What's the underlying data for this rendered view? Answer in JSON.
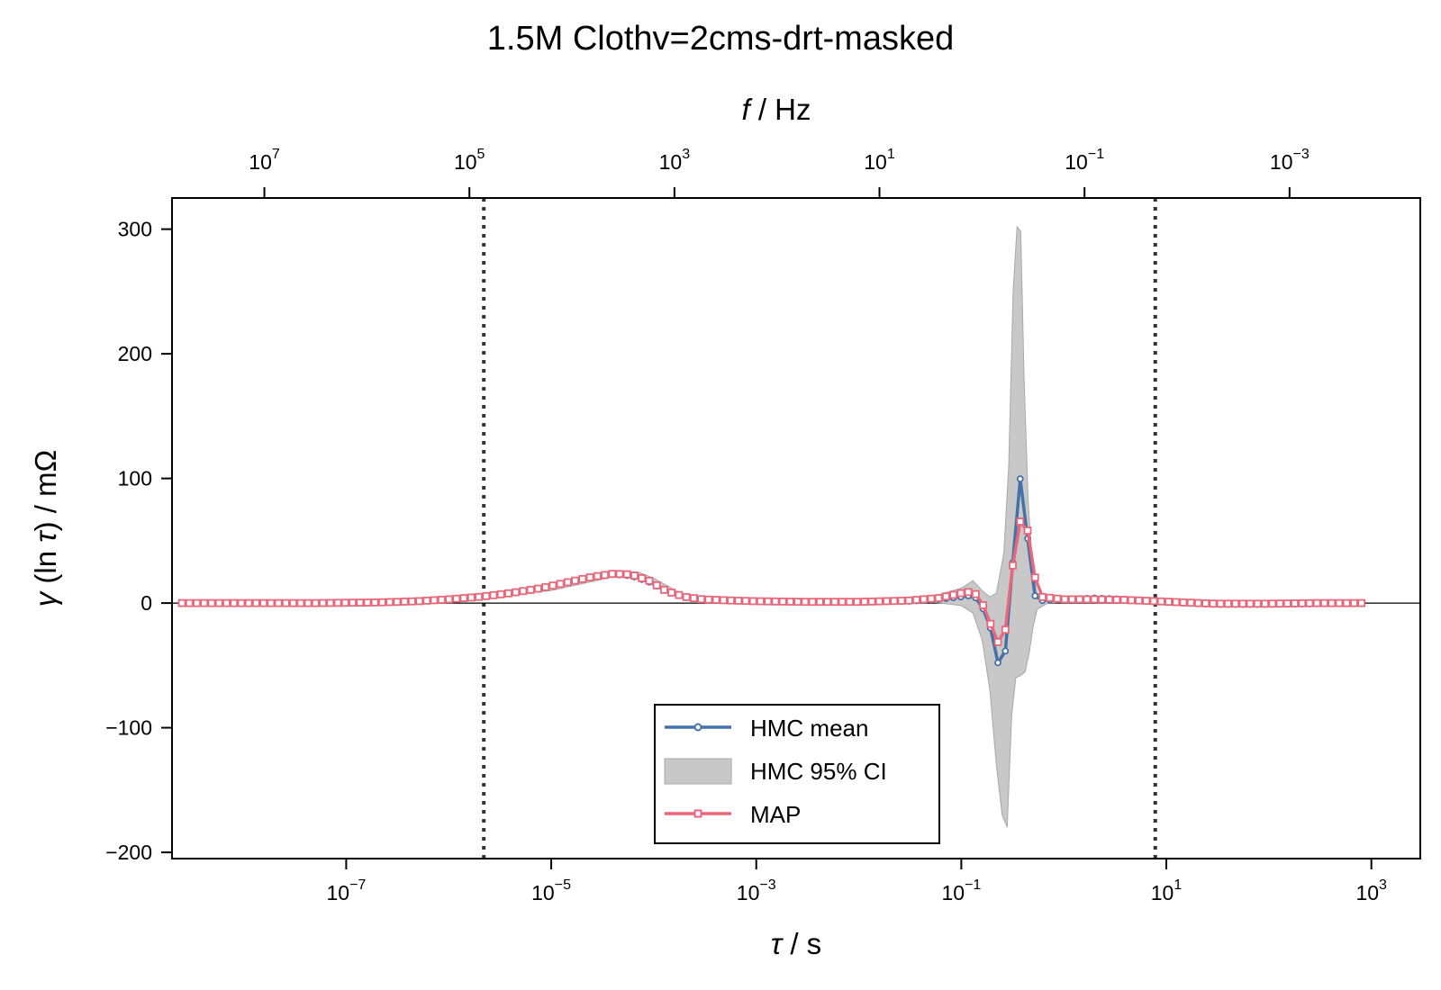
{
  "chart_data": {
    "type": "line",
    "title": "1.5M Clothv=2cms-drt-masked",
    "xlabel": "τ / s",
    "top_xlabel": "f / Hz",
    "ylabel": "γ (ln τ) / mΩ",
    "x_scale": "log",
    "top_x_scale": "log",
    "xlim": [
      2e-09,
      3000
    ],
    "ylim": [
      -205,
      325
    ],
    "x_ticks": [
      {
        "base": "10",
        "exp": "−7",
        "value": 1e-07
      },
      {
        "base": "10",
        "exp": "−5",
        "value": 1e-05
      },
      {
        "base": "10",
        "exp": "−3",
        "value": 0.001
      },
      {
        "base": "10",
        "exp": "−1",
        "value": 0.1
      },
      {
        "base": "10",
        "exp": "1",
        "value": 10
      },
      {
        "base": "10",
        "exp": "3",
        "value": 1000
      }
    ],
    "top_x_ticks": [
      {
        "base": "10",
        "exp": "7",
        "value": 10000000.0
      },
      {
        "base": "10",
        "exp": "5",
        "value": 100000.0
      },
      {
        "base": "10",
        "exp": "3",
        "value": 1000.0
      },
      {
        "base": "10",
        "exp": "1",
        "value": 10
      },
      {
        "base": "10",
        "exp": "−1",
        "value": 0.1
      },
      {
        "base": "10",
        "exp": "−3",
        "value": 0.001
      }
    ],
    "y_ticks": [
      {
        "label": "300",
        "value": 300
      },
      {
        "label": "200",
        "value": 200
      },
      {
        "label": "100",
        "value": 100
      },
      {
        "label": "0",
        "value": 0
      },
      {
        "label": "−100",
        "value": -100
      },
      {
        "label": "−200",
        "value": -200
      }
    ],
    "zero_line": 0,
    "vlines": [
      2.2e-06,
      7.8
    ],
    "legend_position": "lower-center",
    "colors": {
      "hmc": "#4571a9",
      "ci": "#c8c8c8",
      "map": "#e8677a",
      "vline": "#333333"
    },
    "series": [
      {
        "name": "HMC mean",
        "points": [
          [
            2.5e-09,
            0
          ],
          [
            1e-08,
            0
          ],
          [
            5e-08,
            0
          ],
          [
            2e-07,
            0.5
          ],
          [
            5e-07,
            1.5
          ],
          [
            1e-06,
            3
          ],
          [
            2e-06,
            5
          ],
          [
            4e-06,
            8
          ],
          [
            8e-06,
            12
          ],
          [
            1.5e-05,
            17
          ],
          [
            2.5e-05,
            21
          ],
          [
            4e-05,
            23
          ],
          [
            6e-05,
            22
          ],
          [
            9e-05,
            17
          ],
          [
            0.00013,
            10
          ],
          [
            0.0002,
            5
          ],
          [
            0.0003,
            3
          ],
          [
            0.0006,
            2
          ],
          [
            0.001,
            1.5
          ],
          [
            0.003,
            1
          ],
          [
            0.01,
            1
          ],
          [
            0.03,
            1.5
          ],
          [
            0.06,
            3
          ],
          [
            0.1,
            5
          ],
          [
            0.12,
            6
          ],
          [
            0.14,
            4
          ],
          [
            0.16,
            -3
          ],
          [
            0.18,
            -12
          ],
          [
            0.21,
            -30
          ],
          [
            0.23,
            -50
          ],
          [
            0.25,
            -54
          ],
          [
            0.28,
            -30
          ],
          [
            0.31,
            20
          ],
          [
            0.35,
            80
          ],
          [
            0.38,
            103
          ],
          [
            0.41,
            90
          ],
          [
            0.44,
            55
          ],
          [
            0.48,
            20
          ],
          [
            0.53,
            4
          ],
          [
            0.6,
            2
          ],
          [
            1,
            3
          ],
          [
            2,
            4
          ],
          [
            4,
            3
          ],
          [
            8,
            1.5
          ],
          [
            15,
            0
          ],
          [
            30,
            -1
          ],
          [
            100,
            -1
          ],
          [
            300,
            -0.5
          ],
          [
            800,
            0
          ]
        ]
      },
      {
        "name": "HMC 95% CI",
        "upper": [
          [
            2.5e-09,
            0.5
          ],
          [
            1e-06,
            3.5
          ],
          [
            1e-05,
            13
          ],
          [
            4e-05,
            25
          ],
          [
            7e-05,
            25
          ],
          [
            0.0001,
            20
          ],
          [
            0.00015,
            12
          ],
          [
            0.0002,
            6
          ],
          [
            0.0003,
            4
          ],
          [
            0.001,
            2
          ],
          [
            0.01,
            2
          ],
          [
            0.05,
            5
          ],
          [
            0.1,
            12
          ],
          [
            0.13,
            18
          ],
          [
            0.16,
            10
          ],
          [
            0.19,
            5
          ],
          [
            0.22,
            8
          ],
          [
            0.26,
            40
          ],
          [
            0.29,
            110
          ],
          [
            0.32,
            250
          ],
          [
            0.35,
            302
          ],
          [
            0.38,
            298
          ],
          [
            0.41,
            180
          ],
          [
            0.45,
            80
          ],
          [
            0.5,
            25
          ],
          [
            0.55,
            8
          ],
          [
            0.7,
            4
          ],
          [
            2,
            5
          ],
          [
            5,
            4
          ],
          [
            10,
            2
          ],
          [
            30,
            0.5
          ],
          [
            800,
            0.5
          ]
        ],
        "lower": [
          [
            2.5e-09,
            -0.5
          ],
          [
            1e-06,
            1.5
          ],
          [
            1e-05,
            10
          ],
          [
            4e-05,
            21
          ],
          [
            7e-05,
            20
          ],
          [
            0.0001,
            14
          ],
          [
            0.00015,
            7
          ],
          [
            0.0002,
            4
          ],
          [
            0.0003,
            2
          ],
          [
            0.001,
            1
          ],
          [
            0.01,
            0
          ],
          [
            0.05,
            1
          ],
          [
            0.1,
            -2
          ],
          [
            0.13,
            -8
          ],
          [
            0.16,
            -30
          ],
          [
            0.19,
            -70
          ],
          [
            0.22,
            -130
          ],
          [
            0.25,
            -170
          ],
          [
            0.28,
            -180
          ],
          [
            0.31,
            -90
          ],
          [
            0.34,
            -60
          ],
          [
            0.38,
            -58
          ],
          [
            0.42,
            -55
          ],
          [
            0.46,
            -40
          ],
          [
            0.5,
            -20
          ],
          [
            0.55,
            -5
          ],
          [
            0.7,
            0
          ],
          [
            2,
            2
          ],
          [
            5,
            1
          ],
          [
            10,
            -0.5
          ],
          [
            30,
            -2
          ],
          [
            800,
            -0.5
          ]
        ]
      },
      {
        "name": "MAP",
        "points": [
          [
            2.5e-09,
            0
          ],
          [
            1e-08,
            0
          ],
          [
            5e-08,
            0
          ],
          [
            2e-07,
            0.5
          ],
          [
            5e-07,
            1.5
          ],
          [
            1e-06,
            3
          ],
          [
            2e-06,
            5
          ],
          [
            4e-06,
            8
          ],
          [
            8e-06,
            12
          ],
          [
            1.5e-05,
            17
          ],
          [
            2.5e-05,
            21
          ],
          [
            4e-05,
            23.5
          ],
          [
            6e-05,
            23
          ],
          [
            9e-05,
            18
          ],
          [
            0.00013,
            10
          ],
          [
            0.0002,
            5
          ],
          [
            0.0003,
            3
          ],
          [
            0.0006,
            2
          ],
          [
            0.001,
            1.5
          ],
          [
            0.003,
            1
          ],
          [
            0.01,
            1
          ],
          [
            0.03,
            2
          ],
          [
            0.06,
            4
          ],
          [
            0.1,
            8
          ],
          [
            0.12,
            9
          ],
          [
            0.14,
            7
          ],
          [
            0.16,
            0
          ],
          [
            0.18,
            -10
          ],
          [
            0.21,
            -25
          ],
          [
            0.23,
            -32
          ],
          [
            0.25,
            -33
          ],
          [
            0.28,
            -15
          ],
          [
            0.31,
            25
          ],
          [
            0.35,
            50
          ],
          [
            0.38,
            68
          ],
          [
            0.41,
            74
          ],
          [
            0.44,
            60
          ],
          [
            0.48,
            40
          ],
          [
            0.53,
            18
          ],
          [
            0.6,
            5
          ],
          [
            1,
            3
          ],
          [
            2,
            3
          ],
          [
            4,
            2.5
          ],
          [
            8,
            1.5
          ],
          [
            15,
            0.5
          ],
          [
            30,
            -0.5
          ],
          [
            100,
            -0.5
          ],
          [
            300,
            0
          ],
          [
            800,
            0
          ]
        ]
      }
    ]
  }
}
